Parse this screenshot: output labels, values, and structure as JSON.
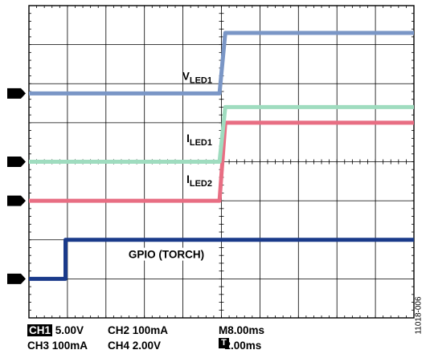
{
  "chart_data": {
    "type": "line",
    "x_unit": "divisions (2.00ms/div)",
    "y_unit": "divisions",
    "grid": true,
    "x_divisions": 10,
    "y_divisions": 8,
    "series": [
      {
        "name": "GPIO (TORCH)",
        "channel": "1",
        "color": "#1a3a8a",
        "points": [
          [
            0,
            -3.0
          ],
          [
            0.95,
            -3.0
          ],
          [
            0.95,
            -2.0
          ],
          [
            10,
            -2.0
          ]
        ]
      },
      {
        "name": "I_LED2",
        "channel": "2",
        "color": "#e86e83",
        "points": [
          [
            0,
            -1.0
          ],
          [
            4.95,
            -1.0
          ],
          [
            5.1,
            1.0
          ],
          [
            10,
            1.0
          ]
        ]
      },
      {
        "name": "I_LED1",
        "channel": "3",
        "color": "#9fdcbf",
        "points": [
          [
            0,
            0.0
          ],
          [
            4.95,
            0.0
          ],
          [
            5.1,
            1.4
          ],
          [
            10,
            1.4
          ]
        ]
      },
      {
        "name": "V_LED1",
        "channel": "4",
        "color": "#7a96c6",
        "points": [
          [
            0,
            1.75
          ],
          [
            4.95,
            1.75
          ],
          [
            5.1,
            3.3
          ],
          [
            10,
            3.3
          ]
        ]
      }
    ],
    "labels": {
      "vled1": {
        "main": "V",
        "sub": "LED1"
      },
      "iled1": {
        "main": "I",
        "sub": "LED1"
      },
      "iled2": {
        "main": "I",
        "sub": "LED2"
      },
      "gpio": "GPIO (TORCH)"
    },
    "channel_markers": [
      "4",
      "3",
      "2",
      "1"
    ]
  },
  "scope_settings": {
    "ch1_label": "CH1",
    "ch1_value": "5.00V",
    "ch2_text": "CH2  100mA",
    "ch3_text": "CH3  100mA",
    "ch4_text": "CH4  2.00V",
    "timebase": "M8.00ms",
    "trigger_icon": "T",
    "trigger_value": "2.00ms"
  },
  "figure_id": "11018-006"
}
